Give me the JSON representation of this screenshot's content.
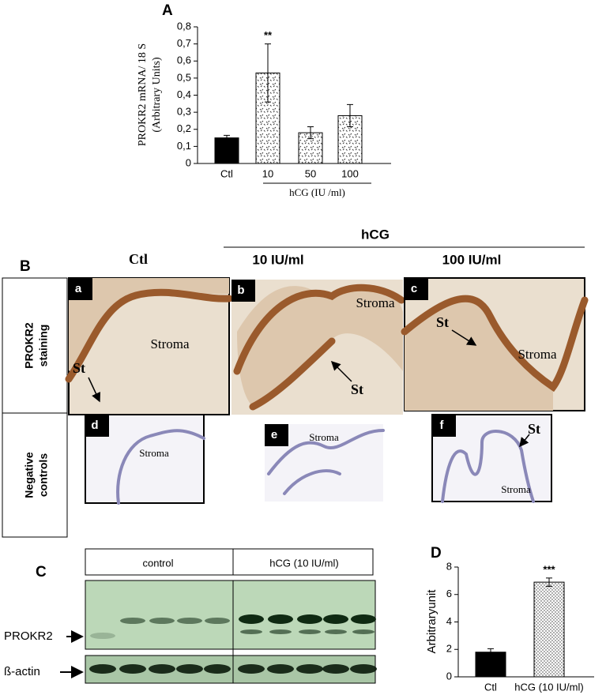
{
  "chart_data": [
    {
      "type": "bar",
      "panel_label": "A",
      "ylabel_lines": [
        "PROKR2 mRNA/ 18 S",
        "(Arbitrary Units)"
      ],
      "categories": [
        "Ctl",
        "10",
        "50",
        "100"
      ],
      "values": [
        0.15,
        0.53,
        0.18,
        0.28
      ],
      "errors": [
        0.015,
        0.17,
        0.035,
        0.065
      ],
      "value_annotations": [
        null,
        "**",
        null,
        null
      ],
      "group_label": "hCG (IU /ml)",
      "color": "#000000",
      "fills": [
        "solid",
        "dotted",
        "dotted",
        "dotted"
      ],
      "ylim": [
        0,
        0.8
      ],
      "yticks": [
        0,
        {
          "value": 0.1,
          "label": "0,1"
        },
        {
          "value": 0.2,
          "label": "0,2"
        },
        {
          "value": 0.3,
          "label": "0,3"
        },
        {
          "value": 0.4,
          "label": "0,4"
        },
        {
          "value": 0.5,
          "label": "0,5"
        },
        {
          "value": 0.6,
          "label": "0,6"
        },
        {
          "value": 0.7,
          "label": "0,7"
        },
        {
          "value": 0.8,
          "label": "0,8"
        }
      ]
    },
    {
      "type": "bar",
      "panel_label": "D",
      "ylabel_lines": [
        "Arbitraryunit"
      ],
      "categories": [
        "Ctl",
        "hCG (10 IU/ml)"
      ],
      "values": [
        1.8,
        6.9
      ],
      "errors": [
        0.25,
        0.3
      ],
      "value_annotations": [
        null,
        "***"
      ],
      "color": "#000000",
      "fills": [
        "solid",
        "dotted"
      ],
      "ylim": [
        0,
        8
      ],
      "yticks": [
        0,
        2,
        4,
        6,
        8
      ]
    }
  ],
  "panel_b": {
    "label": "B",
    "column_headers": {
      "ctl": "Ctl",
      "group": "hCG",
      "dose_10": "10 IU/ml",
      "dose_100": "100 IU/ml"
    },
    "row_labels": [
      [
        "PROKR2",
        "staining"
      ],
      [
        "Negative",
        "controls"
      ]
    ],
    "images": [
      {
        "letter": "a",
        "annotations": [
          "St",
          "Stroma"
        ]
      },
      {
        "letter": "b",
        "annotations": [
          "Stroma",
          "St"
        ]
      },
      {
        "letter": "c",
        "annotations": [
          "St",
          "Stroma"
        ]
      },
      {
        "letter": "d",
        "annotations": [
          "Stroma"
        ]
      },
      {
        "letter": "e",
        "annotations": [
          "Stroma"
        ]
      },
      {
        "letter": "f",
        "annotations": [
          "St",
          "Stroma"
        ]
      }
    ]
  },
  "panel_c": {
    "label": "C",
    "lanes": [
      "control",
      "hCG (10 IU/ml)"
    ],
    "rows": [
      "PROKR2",
      "ß-actin"
    ]
  }
}
